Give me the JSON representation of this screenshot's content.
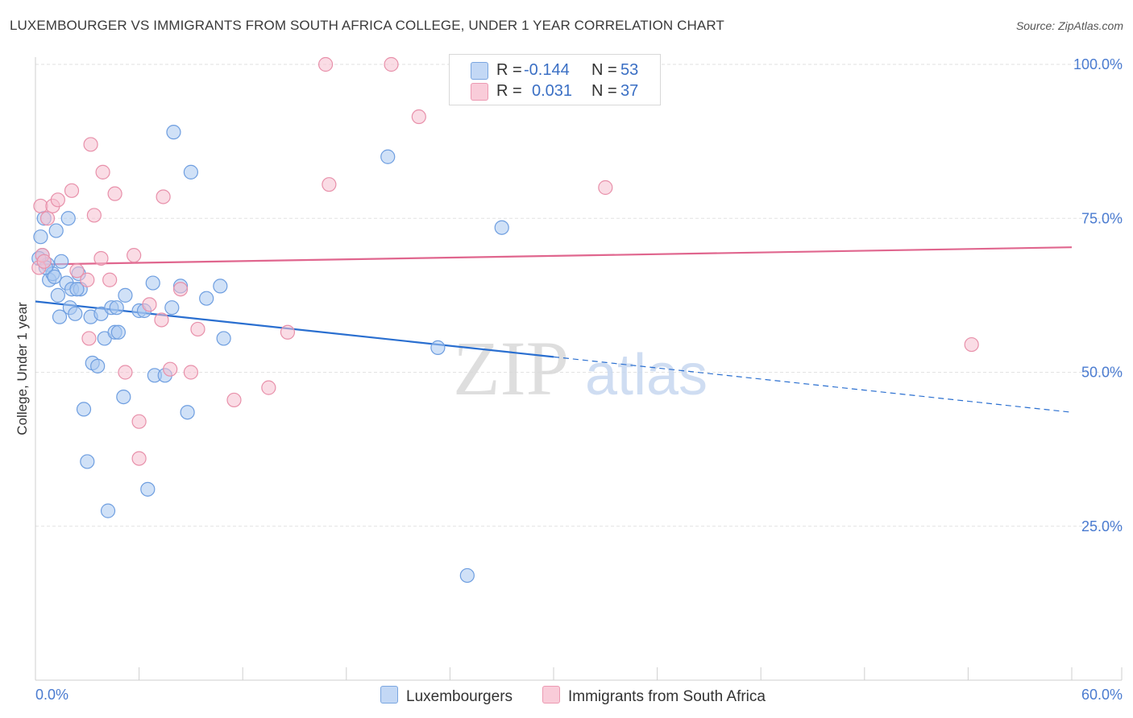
{
  "title": "LUXEMBOURGER VS IMMIGRANTS FROM SOUTH AFRICA COLLEGE, UNDER 1 YEAR CORRELATION CHART",
  "source": "Source: ZipAtlas.com",
  "watermark": {
    "zip": "ZIP",
    "atlas": "atlas"
  },
  "legend": {
    "series1": {
      "r_label": "R =",
      "r_value": "-0.144",
      "n_label": "N =",
      "n_value": "53"
    },
    "series2": {
      "r_label": "R =",
      "r_value": "0.031",
      "n_label": "N =",
      "n_value": "37"
    }
  },
  "bottom_legend": {
    "series1": "Luxembourgers",
    "series2": "Immigrants from South Africa"
  },
  "colors": {
    "series1_fill": "#aac8f0",
    "series1_stroke": "#6e9ee0",
    "series1_line": "#2a6fd0",
    "series2_fill": "#f6bfd0",
    "series2_stroke": "#e890aa",
    "series2_line": "#e0668e",
    "grid": "#e2e2e2",
    "tick_text": "#4a7bd0"
  },
  "chart_data": {
    "type": "scatter",
    "title": "LUXEMBOURGER VS IMMIGRANTS FROM SOUTH AFRICA COLLEGE, UNDER 1 YEAR CORRELATION CHART",
    "xlabel": "",
    "ylabel": "College, Under 1 year",
    "xlim": [
      0,
      60
    ],
    "ylim": [
      0,
      100
    ],
    "x_tick_labels": [
      "0.0%",
      "60.0%"
    ],
    "y_tick_labels": [
      "100.0%",
      "75.0%",
      "50.0%",
      "25.0%"
    ],
    "y_ticks": [
      100,
      75,
      50,
      25
    ],
    "series": [
      {
        "name": "Luxembourgers",
        "R": -0.144,
        "N": 53,
        "trend": {
          "x0": 0,
          "y0": 61.5,
          "x1": 30,
          "y1": 52.5,
          "dash_to_x": 60,
          "dash_to_y": 43.5
        },
        "points": [
          [
            0.3,
            72
          ],
          [
            0.4,
            69
          ],
          [
            0.5,
            75
          ],
          [
            0.7,
            67.5
          ],
          [
            0.8,
            65
          ],
          [
            1.0,
            66
          ],
          [
            1.2,
            73
          ],
          [
            1.3,
            62.5
          ],
          [
            1.4,
            59
          ],
          [
            1.5,
            68
          ],
          [
            1.8,
            64.5
          ],
          [
            1.9,
            75
          ],
          [
            2.0,
            60.5
          ],
          [
            2.1,
            63.5
          ],
          [
            2.3,
            59.5
          ],
          [
            2.5,
            66
          ],
          [
            2.6,
            63.5
          ],
          [
            2.8,
            44
          ],
          [
            3.0,
            35.5
          ],
          [
            3.2,
            59
          ],
          [
            3.3,
            51.5
          ],
          [
            3.6,
            51
          ],
          [
            3.8,
            59.5
          ],
          [
            4.0,
            55.5
          ],
          [
            4.2,
            27.5
          ],
          [
            4.4,
            60.5
          ],
          [
            4.6,
            56.5
          ],
          [
            4.7,
            60.5
          ],
          [
            4.8,
            56.5
          ],
          [
            5.1,
            46
          ],
          [
            5.2,
            62.5
          ],
          [
            6.0,
            60
          ],
          [
            6.3,
            60
          ],
          [
            6.5,
            31
          ],
          [
            6.8,
            64.5
          ],
          [
            6.9,
            49.5
          ],
          [
            7.5,
            49.5
          ],
          [
            7.9,
            60.5
          ],
          [
            8.0,
            89
          ],
          [
            8.4,
            64
          ],
          [
            8.8,
            43.5
          ],
          [
            9.0,
            82.5
          ],
          [
            9.9,
            62
          ],
          [
            10.7,
            64
          ],
          [
            10.9,
            55.5
          ],
          [
            20.4,
            85
          ],
          [
            23.3,
            54
          ],
          [
            25.0,
            17
          ],
          [
            27.0,
            73.5
          ],
          [
            0.2,
            68.5
          ],
          [
            0.6,
            67
          ],
          [
            1.1,
            65.5
          ],
          [
            2.4,
            63.5
          ]
        ]
      },
      {
        "name": "Immigrants from South Africa",
        "R": 0.031,
        "N": 37,
        "trend": {
          "x0": 0,
          "y0": 67.5,
          "x1": 60,
          "y1": 70.3
        },
        "points": [
          [
            0.2,
            67
          ],
          [
            0.3,
            77
          ],
          [
            0.4,
            69
          ],
          [
            0.7,
            75
          ],
          [
            1.0,
            77
          ],
          [
            1.3,
            78
          ],
          [
            2.1,
            79.5
          ],
          [
            2.4,
            66.5
          ],
          [
            3.0,
            65
          ],
          [
            3.1,
            55.5
          ],
          [
            3.2,
            87
          ],
          [
            3.4,
            75.5
          ],
          [
            3.8,
            68.5
          ],
          [
            3.9,
            82.5
          ],
          [
            4.3,
            65
          ],
          [
            4.6,
            79
          ],
          [
            5.2,
            50
          ],
          [
            5.7,
            69
          ],
          [
            6.0,
            42
          ],
          [
            6.0,
            36
          ],
          [
            6.6,
            61
          ],
          [
            7.3,
            58.5
          ],
          [
            7.4,
            78.5
          ],
          [
            7.8,
            50.5
          ],
          [
            8.4,
            63.5
          ],
          [
            9.0,
            50
          ],
          [
            9.4,
            57
          ],
          [
            11.5,
            45.5
          ],
          [
            13.5,
            47.5
          ],
          [
            14.6,
            56.5
          ],
          [
            16.8,
            100
          ],
          [
            17.0,
            80.5
          ],
          [
            20.6,
            100
          ],
          [
            22.2,
            91.5
          ],
          [
            33.0,
            80
          ],
          [
            54.2,
            54.5
          ],
          [
            0.5,
            68
          ]
        ]
      }
    ]
  }
}
